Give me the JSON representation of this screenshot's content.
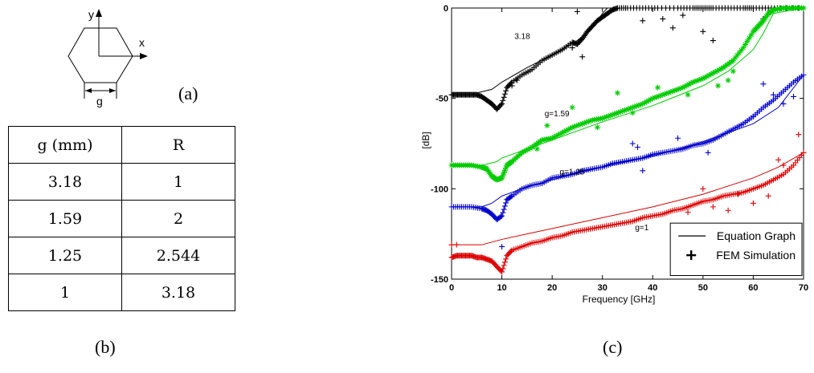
{
  "panels": {
    "a": "(a)",
    "b": "(b)",
    "c": "(c)"
  },
  "hexagon": {
    "y_axis": "y",
    "x_axis": "x",
    "gap_label": "g"
  },
  "table": {
    "headers": [
      "g (mm)",
      "R"
    ],
    "rows": [
      [
        "3.18",
        "1"
      ],
      [
        "1.59",
        "2"
      ],
      [
        "1.25",
        "2.544"
      ],
      [
        "1",
        "3.18"
      ]
    ]
  },
  "chart_data": {
    "type": "line",
    "xlabel": "Frequency [GHz]",
    "ylabel": "[dB]",
    "xlim": [
      0,
      70
    ],
    "ylim": [
      -150,
      0
    ],
    "x_ticks": [
      0,
      10,
      20,
      30,
      40,
      50,
      60,
      70
    ],
    "y_ticks": [
      0,
      -50,
      -100,
      -150
    ],
    "legend": {
      "placement": "bottom-right",
      "entries": [
        "Equation Graph",
        "FEM Simulation"
      ]
    },
    "series": [
      {
        "name": "3.18",
        "color": "#000000",
        "marker": "+",
        "curve_x": [
          0,
          5,
          8,
          10,
          15,
          20,
          25,
          28,
          30,
          31,
          35,
          70
        ],
        "curve_y": [
          -47,
          -47,
          -45,
          -41,
          -33,
          -26,
          -18,
          -11,
          -3,
          0,
          0,
          0
        ],
        "fem_x": [
          0,
          1,
          2,
          3,
          4,
          5,
          6,
          7,
          8,
          9,
          10,
          11,
          12,
          14,
          16,
          18,
          20,
          22,
          24,
          25,
          26,
          27,
          28,
          29,
          30,
          31,
          32,
          33,
          35,
          38,
          41,
          45,
          48,
          50,
          52,
          55,
          58,
          60,
          63,
          66,
          69
        ],
        "fem_y": [
          -48,
          -48,
          -48,
          -48,
          -48,
          -48,
          -49,
          -51,
          -53,
          -56,
          -53,
          -44,
          -41,
          -37,
          -34,
          -29,
          -26,
          -23,
          -19,
          -20,
          -17,
          -13,
          -10,
          -7,
          -5,
          -3,
          -1,
          0,
          0,
          0,
          0,
          0,
          0,
          0,
          0,
          0,
          0,
          0,
          0,
          0,
          0
        ],
        "fem_scatter_x": [
          12,
          13,
          24,
          26,
          38,
          42,
          44,
          46,
          50,
          52,
          25,
          62
        ],
        "fem_scatter_y": [
          -43,
          -40,
          -22,
          -27,
          -7,
          -6,
          -11,
          -4,
          -13,
          -18,
          -2,
          -6
        ]
      },
      {
        "name": "g=1.59",
        "color": "#00cc00",
        "marker": "*",
        "curve_x": [
          0,
          6,
          9,
          10,
          15,
          20,
          30,
          40,
          50,
          55,
          60,
          62,
          64,
          70
        ],
        "curve_y": [
          -87,
          -87,
          -85,
          -83,
          -78,
          -73,
          -63,
          -54,
          -43,
          -35,
          -23,
          -14,
          -3,
          0
        ],
        "fem_x": [
          0,
          2,
          4,
          6,
          7,
          8,
          9,
          10,
          11,
          12,
          14,
          16,
          18,
          20,
          22,
          24,
          26,
          28,
          30,
          32,
          34,
          36,
          38,
          40,
          42,
          44,
          46,
          48,
          50,
          52,
          54,
          56,
          58,
          60,
          61,
          62,
          63,
          64,
          66,
          68,
          70
        ],
        "fem_y": [
          -87,
          -87,
          -87,
          -88,
          -89,
          -93,
          -95,
          -94,
          -87,
          -85,
          -80,
          -77,
          -73,
          -72,
          -69,
          -66,
          -64,
          -62,
          -61,
          -59,
          -57,
          -55,
          -53,
          -50,
          -48,
          -46,
          -44,
          -41,
          -39,
          -36,
          -33,
          -29,
          -22,
          -13,
          -10,
          -7,
          -3,
          -1,
          0,
          0,
          0
        ],
        "fem_scatter_x": [
          17,
          19,
          24,
          29,
          33,
          36,
          41,
          47,
          53,
          55,
          56
        ],
        "fem_scatter_y": [
          -78,
          -65,
          -55,
          -66,
          -47,
          -58,
          -44,
          -48,
          -43,
          -40,
          -35
        ]
      },
      {
        "name": "g=1.25",
        "color": "#0000cc",
        "marker": "+",
        "curve_x": [
          0,
          6,
          8,
          10,
          15,
          20,
          30,
          40,
          50,
          60,
          65,
          70
        ],
        "curve_y": [
          -110,
          -110,
          -108,
          -104,
          -99,
          -95,
          -88,
          -82,
          -74,
          -64,
          -55,
          -37
        ],
        "fem_x": [
          0,
          2,
          4,
          6,
          7,
          8,
          9,
          10,
          11,
          12,
          14,
          16,
          18,
          20,
          22,
          24,
          26,
          28,
          30,
          32,
          34,
          36,
          38,
          40,
          42,
          44,
          46,
          48,
          50,
          52,
          54,
          56,
          58,
          60,
          62,
          64,
          66,
          68,
          70
        ],
        "fem_y": [
          -110,
          -110,
          -110,
          -111,
          -112,
          -114,
          -117,
          -115,
          -106,
          -104,
          -100,
          -98,
          -97,
          -94,
          -93,
          -92,
          -90,
          -89,
          -88,
          -86,
          -85,
          -84,
          -83,
          -81,
          -80,
          -79,
          -78,
          -76,
          -75,
          -73,
          -70,
          -67,
          -64,
          -60,
          -55,
          -51,
          -46,
          -41,
          -37
        ],
        "fem_scatter_x": [
          10,
          36,
          37,
          38,
          45,
          51,
          60,
          62,
          64,
          66,
          68
        ],
        "fem_scatter_y": [
          -132,
          -75,
          -77,
          -90,
          -72,
          -80,
          -60,
          -42,
          -48,
          -53,
          -49
        ]
      },
      {
        "name": "g=1",
        "color": "#dd0000",
        "marker": "+",
        "curve_x": [
          0,
          6,
          10,
          20,
          30,
          40,
          50,
          60,
          65,
          70
        ],
        "curve_y": [
          -131,
          -131,
          -128,
          -122,
          -116,
          -110,
          -103,
          -94,
          -88,
          -80
        ],
        "fem_x": [
          0,
          1,
          2,
          3,
          4,
          5,
          6,
          7,
          8,
          9,
          10,
          11,
          12,
          14,
          16,
          18,
          20,
          22,
          24,
          26,
          28,
          30,
          32,
          34,
          36,
          38,
          40,
          42,
          44,
          46,
          48,
          50,
          52,
          54,
          56,
          58,
          60,
          62,
          64,
          66,
          68,
          70
        ],
        "fem_y": [
          -138,
          -137,
          -137,
          -137,
          -137,
          -138,
          -138,
          -139,
          -140,
          -143,
          -146,
          -137,
          -134,
          -132,
          -130,
          -129,
          -127,
          -126,
          -124,
          -123,
          -122,
          -121,
          -120,
          -119,
          -118,
          -116,
          -115,
          -114,
          -112,
          -111,
          -109,
          -107,
          -106,
          -104,
          -103,
          -102,
          -100,
          -98,
          -95,
          -92,
          -87,
          -80
        ],
        "fem_scatter_x": [
          0,
          1,
          47,
          50,
          52,
          55,
          57,
          60,
          63,
          65,
          66,
          69
        ],
        "fem_scatter_y": [
          -131,
          -131,
          -113,
          -100,
          -110,
          -112,
          -103,
          -108,
          -104,
          -84,
          -87,
          -70
        ]
      }
    ],
    "annotations": [
      "3.18",
      "g=1.59",
      "g=1.25",
      "g=1"
    ]
  }
}
